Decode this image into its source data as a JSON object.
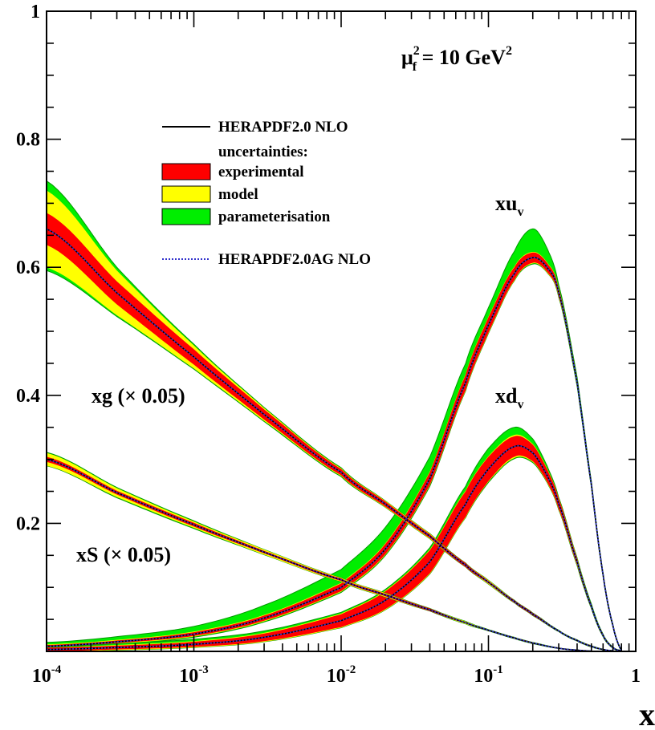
{
  "chart_data": {
    "type": "area",
    "annotation": {
      "main": "μ",
      "sup": "2",
      "sub": "f",
      "rest": " = 10 GeV",
      "rest_sup": "2"
    },
    "xlabel": "x",
    "xscale": "log",
    "xlim": [
      0.0001,
      1
    ],
    "ylim": [
      0,
      1
    ],
    "x_ticks": [
      {
        "value": 0.0001,
        "base": "10",
        "exp": "-4"
      },
      {
        "value": 0.001,
        "base": "10",
        "exp": "-3"
      },
      {
        "value": 0.01,
        "base": "10",
        "exp": "-2"
      },
      {
        "value": 0.1,
        "base": "10",
        "exp": "-1"
      },
      {
        "value": 1,
        "base": "1",
        "exp": ""
      }
    ],
    "y_ticks": [
      {
        "value": 0.2,
        "label": "0.2"
      },
      {
        "value": 0.4,
        "label": "0.4"
      },
      {
        "value": 0.6,
        "label": "0.6"
      },
      {
        "value": 0.8,
        "label": "0.8"
      },
      {
        "value": 1.0,
        "label": "1"
      }
    ],
    "legend": {
      "placement": "upper-left",
      "entries": [
        {
          "key": "line",
          "label": "HERAPDF2.0 NLO"
        },
        {
          "key": "none",
          "label": "uncertainties:"
        },
        {
          "key": "experimental",
          "label": "experimental"
        },
        {
          "key": "model",
          "label": "model"
        },
        {
          "key": "parameterisation",
          "label": "parameterisation"
        },
        {
          "key": "dotted",
          "label": "HERAPDF2.0AG NLO"
        }
      ]
    },
    "colors": {
      "experimental": "#ff0000",
      "model": "#ffff00",
      "parameterisation": "#00ee00",
      "line": "#000000",
      "dotted": "#3333cc",
      "band_edge": "#009900"
    },
    "series": [
      {
        "name": "xu",
        "name_sub": "v",
        "x": [
          0.0001,
          0.0003,
          0.001,
          0.003,
          0.01,
          0.02,
          0.04,
          0.07,
          0.1,
          0.15,
          0.2,
          0.25,
          0.3,
          0.4,
          0.5,
          0.6,
          0.7,
          0.8
        ],
        "central": [
          0.008,
          0.015,
          0.027,
          0.052,
          0.1,
          0.16,
          0.27,
          0.42,
          0.51,
          0.59,
          0.615,
          0.6,
          0.56,
          0.42,
          0.26,
          0.12,
          0.04,
          0.002
        ],
        "exp": [
          0.002,
          0.002,
          0.003,
          0.004,
          0.006,
          0.008,
          0.01,
          0.012,
          0.012,
          0.01,
          0.008,
          0.007,
          0.006,
          0.005,
          0.004,
          0.003,
          0.002,
          0.001
        ],
        "model": [
          0.003,
          0.003,
          0.004,
          0.005,
          0.007,
          0.009,
          0.011,
          0.013,
          0.013,
          0.011,
          0.009,
          0.008,
          0.007,
          0.006,
          0.004,
          0.003,
          0.002,
          0.001
        ],
        "par_up": [
          0.006,
          0.008,
          0.012,
          0.02,
          0.028,
          0.034,
          0.034,
          0.03,
          0.027,
          0.035,
          0.045,
          0.03,
          0.012,
          0.008,
          0.005,
          0.003,
          0.002,
          0.001
        ],
        "par_dn": [
          0.003,
          0.004,
          0.005,
          0.006,
          0.008,
          0.01,
          0.012,
          0.013,
          0.013,
          0.011,
          0.01,
          0.008,
          0.007,
          0.006,
          0.004,
          0.003,
          0.002,
          0.001
        ]
      },
      {
        "name": "xd",
        "name_sub": "v",
        "x": [
          0.0001,
          0.0003,
          0.001,
          0.003,
          0.01,
          0.02,
          0.04,
          0.07,
          0.1,
          0.15,
          0.2,
          0.25,
          0.3,
          0.4,
          0.5,
          0.6,
          0.7,
          0.8
        ],
        "central": [
          0.003,
          0.006,
          0.011,
          0.022,
          0.048,
          0.08,
          0.14,
          0.23,
          0.285,
          0.32,
          0.31,
          0.275,
          0.23,
          0.14,
          0.07,
          0.025,
          0.006,
          0.001
        ],
        "exp": [
          0.003,
          0.003,
          0.004,
          0.006,
          0.01,
          0.014,
          0.018,
          0.02,
          0.019,
          0.016,
          0.013,
          0.01,
          0.008,
          0.005,
          0.003,
          0.002,
          0.001,
          0.0005
        ],
        "model": [
          0.003,
          0.004,
          0.005,
          0.007,
          0.011,
          0.015,
          0.019,
          0.021,
          0.02,
          0.018,
          0.014,
          0.011,
          0.009,
          0.006,
          0.003,
          0.002,
          0.001,
          0.0005
        ],
        "par_up": [
          0.004,
          0.006,
          0.008,
          0.01,
          0.013,
          0.017,
          0.022,
          0.028,
          0.032,
          0.03,
          0.022,
          0.015,
          0.01,
          0.006,
          0.004,
          0.002,
          0.001,
          0.0005
        ],
        "par_dn": [
          0.003,
          0.004,
          0.005,
          0.007,
          0.011,
          0.015,
          0.019,
          0.021,
          0.021,
          0.019,
          0.015,
          0.011,
          0.009,
          0.006,
          0.003,
          0.002,
          0.001,
          0.0005
        ]
      },
      {
        "name": "xg (× 0.05)",
        "name_sub": "",
        "x": [
          0.0001,
          0.0003,
          0.001,
          0.003,
          0.01,
          0.02,
          0.04,
          0.07,
          0.1,
          0.15,
          0.2,
          0.3,
          0.4,
          0.5,
          0.6,
          0.7
        ],
        "central": [
          0.66,
          0.56,
          0.46,
          0.37,
          0.28,
          0.23,
          0.18,
          0.135,
          0.108,
          0.078,
          0.058,
          0.032,
          0.017,
          0.008,
          0.003,
          0.001
        ],
        "exp": [
          0.025,
          0.018,
          0.012,
          0.008,
          0.005,
          0.004,
          0.003,
          0.003,
          0.002,
          0.002,
          0.002,
          0.001,
          0.001,
          0.001,
          0.0005,
          0.0002
        ],
        "model": [
          0.06,
          0.035,
          0.018,
          0.01,
          0.006,
          0.005,
          0.004,
          0.003,
          0.003,
          0.002,
          0.002,
          0.001,
          0.001,
          0.001,
          0.0005,
          0.0002
        ],
        "par_up": [
          0.075,
          0.04,
          0.02,
          0.011,
          0.007,
          0.005,
          0.004,
          0.003,
          0.003,
          0.002,
          0.002,
          0.001,
          0.001,
          0.001,
          0.0005,
          0.0002
        ],
        "par_dn": [
          0.065,
          0.037,
          0.019,
          0.011,
          0.007,
          0.005,
          0.004,
          0.003,
          0.003,
          0.002,
          0.002,
          0.001,
          0.001,
          0.001,
          0.0005,
          0.0002
        ]
      },
      {
        "name": "xS (× 0.05)",
        "name_sub": "",
        "x": [
          0.0001,
          0.0003,
          0.001,
          0.003,
          0.01,
          0.02,
          0.04,
          0.07,
          0.1,
          0.15,
          0.2,
          0.3,
          0.4,
          0.5
        ],
        "central": [
          0.3,
          0.248,
          0.198,
          0.155,
          0.112,
          0.088,
          0.065,
          0.045,
          0.033,
          0.021,
          0.013,
          0.005,
          0.002,
          0.0005
        ],
        "exp": [
          0.004,
          0.003,
          0.003,
          0.002,
          0.002,
          0.002,
          0.002,
          0.001,
          0.001,
          0.001,
          0.001,
          0.0005,
          0.0003,
          0.0002
        ],
        "model": [
          0.01,
          0.007,
          0.005,
          0.004,
          0.003,
          0.003,
          0.002,
          0.002,
          0.001,
          0.001,
          0.001,
          0.0005,
          0.0003,
          0.0002
        ],
        "par_up": [
          0.011,
          0.008,
          0.006,
          0.004,
          0.003,
          0.003,
          0.002,
          0.002,
          0.001,
          0.001,
          0.001,
          0.0005,
          0.0003,
          0.0002
        ],
        "par_dn": [
          0.01,
          0.008,
          0.006,
          0.004,
          0.003,
          0.003,
          0.002,
          0.002,
          0.001,
          0.001,
          0.001,
          0.0005,
          0.0003,
          0.0002
        ]
      }
    ]
  }
}
